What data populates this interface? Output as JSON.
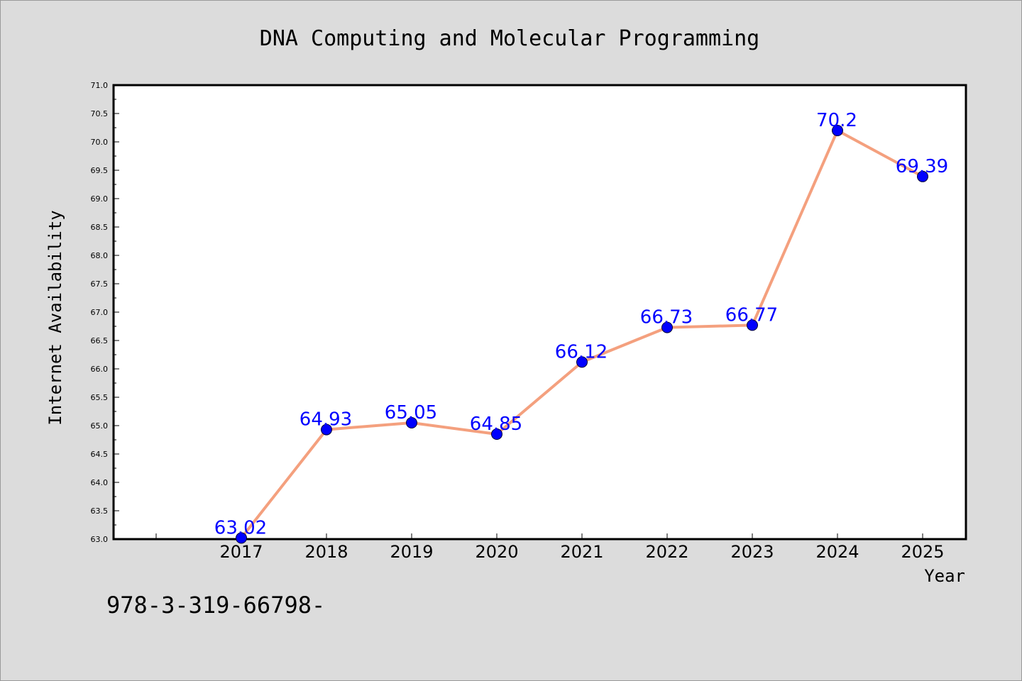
{
  "chart_data": {
    "type": "line",
    "title": "DNA Computing and Molecular Programming",
    "xlabel": "Year",
    "ylabel": "Internet Availability",
    "categories": [
      "2017",
      "2018",
      "2019",
      "2020",
      "2021",
      "2022",
      "2023",
      "2024",
      "2025"
    ],
    "values": [
      63.02,
      64.93,
      65.05,
      64.85,
      66.12,
      66.73,
      66.77,
      70.2,
      69.39
    ],
    "data_labels": [
      "63.02",
      "64.93",
      "65.05",
      "64.85",
      "66.12",
      "66.73",
      "66.77",
      "70.2",
      "69.39"
    ],
    "ylim": [
      63.0,
      71.0
    ],
    "yticks": [
      "63.0",
      "63.5",
      "64.0",
      "64.5",
      "65.0",
      "65.5",
      "66.0",
      "66.5",
      "67.0",
      "67.5",
      "68.0",
      "68.5",
      "69.0",
      "69.5",
      "70.0",
      "70.5",
      "71.0"
    ],
    "grid": false,
    "line_color": "#f4a07e",
    "marker_color": "#0000ff",
    "label_color": "#0000ff"
  },
  "footer": {
    "text": "978-3-319-66798-"
  }
}
